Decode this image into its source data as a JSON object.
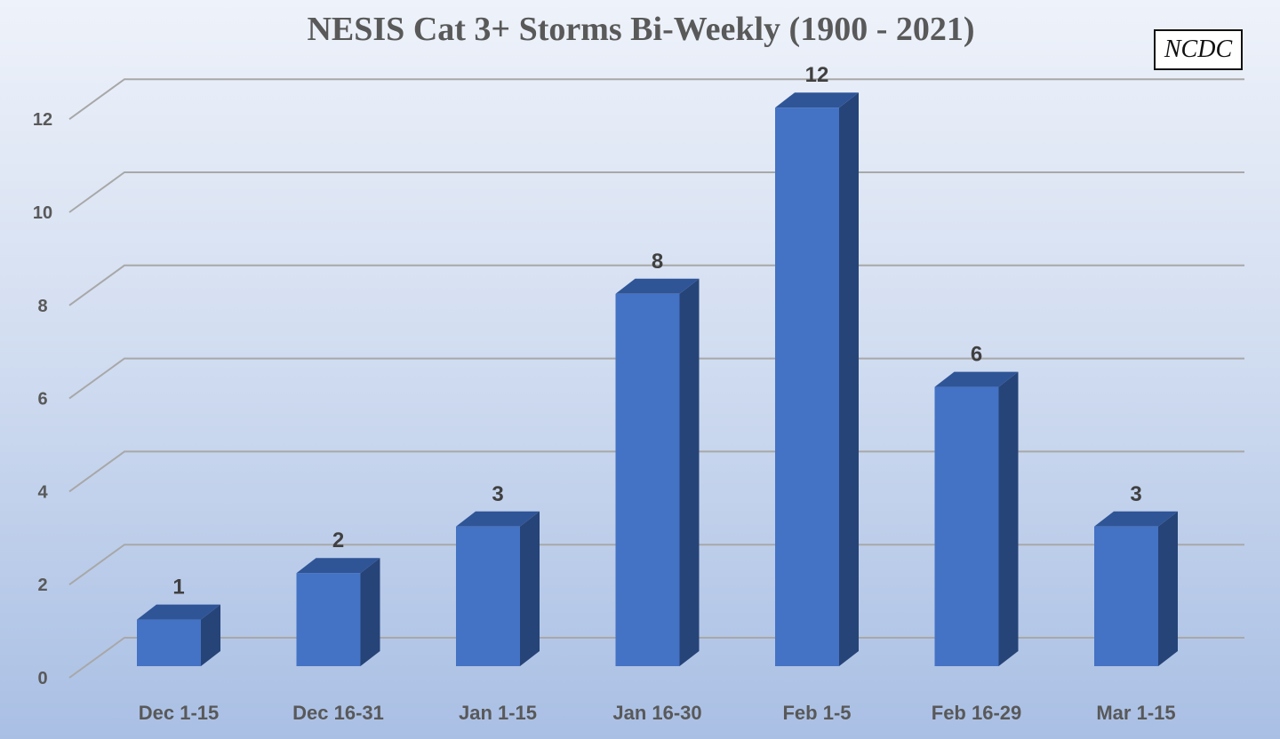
{
  "chart_data": {
    "type": "bar",
    "style": "3d-column",
    "title": "NESIS Cat 3+ Storms Bi-Weekly (1900 - 2021)",
    "source_label": "NCDC",
    "categories": [
      "Dec 1-15",
      "Dec 16-31",
      "Jan 1-15",
      "Jan 16-30",
      "Feb 1-5",
      "Feb 16-29",
      "Mar 1-15"
    ],
    "values": [
      1,
      2,
      3,
      8,
      12,
      6,
      3
    ],
    "data_labels": [
      "1",
      "2",
      "3",
      "8",
      "12",
      "6",
      "3"
    ],
    "ylim": [
      0,
      12
    ],
    "yticks": [
      0,
      2,
      4,
      6,
      8,
      10,
      12
    ],
    "ytick_labels": [
      "0",
      "2",
      "4",
      "6",
      "8",
      "10",
      "12"
    ],
    "grid": true,
    "legend": "none",
    "colors": {
      "bar_front": "#4472c4",
      "bar_side": "#264478",
      "bar_top": "#2f5597",
      "grid": "#a8a8a8",
      "text": "#595959"
    }
  }
}
